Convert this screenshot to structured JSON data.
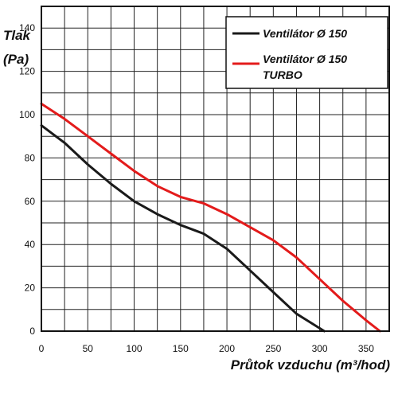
{
  "chart_data": {
    "type": "line",
    "xlabel": "Průtok vzduchu (m³/hod)",
    "ylabel_line1": "Tlak",
    "ylabel_line2": "(Pa)",
    "xlim": [
      0,
      375
    ],
    "ylim": [
      0,
      150
    ],
    "x_ticks": [
      0,
      50,
      100,
      150,
      200,
      250,
      300,
      350
    ],
    "y_ticks": [
      0,
      20,
      40,
      60,
      80,
      100,
      120,
      140
    ],
    "grid": true,
    "legend_position": "top-right",
    "series": [
      {
        "name": "Ventilátor Ø 150",
        "name_line2": "",
        "color": "#1a1a1a",
        "x": [
          0,
          25,
          50,
          75,
          100,
          125,
          150,
          175,
          200,
          225,
          250,
          275,
          305
        ],
        "y": [
          95,
          87,
          77,
          68,
          60,
          54,
          49,
          45,
          38,
          28,
          18,
          8,
          0
        ]
      },
      {
        "name": "Ventilátor Ø 150",
        "name_line2": "TURBO",
        "color": "#e31b1b",
        "x": [
          0,
          25,
          50,
          75,
          100,
          125,
          150,
          175,
          200,
          225,
          250,
          275,
          300,
          325,
          350,
          365
        ],
        "y": [
          105,
          98,
          90,
          82,
          74,
          67,
          62,
          59,
          54,
          48,
          42,
          34,
          24,
          14,
          5,
          0
        ]
      }
    ]
  }
}
